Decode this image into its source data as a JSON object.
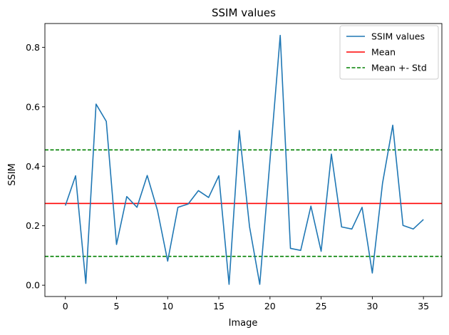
{
  "chart_data": {
    "type": "line",
    "title": "SSIM values",
    "xlabel": "Image",
    "ylabel": "SSIM",
    "xlim": [
      -2,
      36.8
    ],
    "ylim": [
      -0.038,
      0.88
    ],
    "xticks": [
      0,
      5,
      10,
      15,
      20,
      25,
      30,
      35
    ],
    "yticks": [
      0.0,
      0.2,
      0.4,
      0.6,
      0.8
    ],
    "ytick_labels": [
      "0.0",
      "0.2",
      "0.4",
      "0.6",
      "0.8"
    ],
    "grid": false,
    "legend_position": "top-right",
    "series": [
      {
        "name": "SSIM values",
        "color": "#1f77b4",
        "x": [
          0,
          1,
          2,
          3,
          4,
          5,
          6,
          7,
          8,
          9,
          10,
          11,
          12,
          13,
          14,
          15,
          16,
          17,
          18,
          19,
          20,
          21,
          22,
          23,
          24,
          25,
          26,
          27,
          28,
          29,
          30,
          31,
          32,
          33,
          34,
          35
        ],
        "values": [
          0.268,
          0.368,
          0.006,
          0.609,
          0.551,
          0.137,
          0.298,
          0.262,
          0.369,
          0.252,
          0.081,
          0.262,
          0.273,
          0.318,
          0.295,
          0.368,
          0.003,
          0.52,
          0.197,
          0.003,
          0.42,
          0.84,
          0.124,
          0.117,
          0.266,
          0.114,
          0.441,
          0.196,
          0.189,
          0.262,
          0.041,
          0.343,
          0.538,
          0.201,
          0.189,
          0.221
        ]
      }
    ],
    "reference_lines": [
      {
        "name": "Mean",
        "value": 0.275,
        "color": "#ff0000",
        "style": "solid"
      },
      {
        "name": "Mean +- Std",
        "values": [
          0.455,
          0.097
        ],
        "color": "#008000",
        "style": "dashed"
      }
    ]
  }
}
